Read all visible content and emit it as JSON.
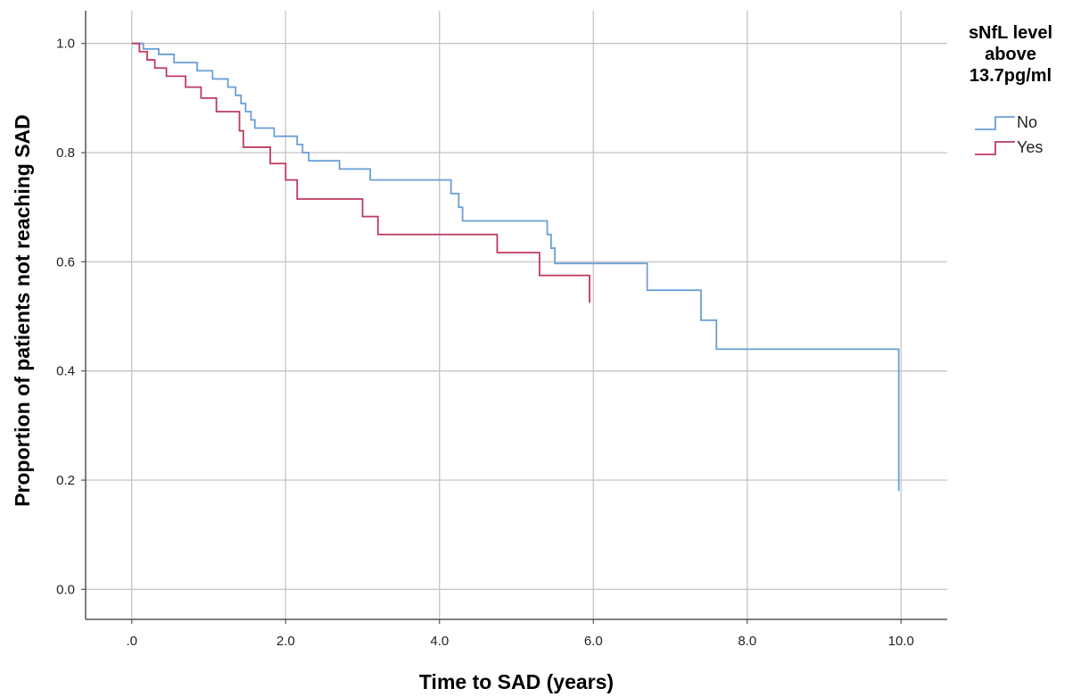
{
  "chart_data": {
    "type": "line",
    "title": "",
    "xlabel": "Time to SAD (years)",
    "ylabel": "Proportion of patients not reaching SAD",
    "xlim": [
      -0.6,
      10.6
    ],
    "ylim": [
      -0.055,
      1.06
    ],
    "x_ticks": [
      0,
      2,
      4,
      6,
      8,
      10
    ],
    "x_tick_labels": [
      ".0",
      "2.0",
      "4.0",
      "6.0",
      "8.0",
      "10.0"
    ],
    "y_ticks": [
      0,
      0.2,
      0.4,
      0.6,
      0.8,
      1.0
    ],
    "y_tick_labels": [
      "0.0",
      "0.2",
      "0.4",
      "0.6",
      "0.8",
      "1.0"
    ],
    "grid": true,
    "legend": {
      "title_lines": [
        "sNfL level",
        "above",
        "13.7pg/ml"
      ],
      "position": "right"
    },
    "series": [
      {
        "name": "No",
        "color": "#6a9fd6",
        "step": true,
        "x": [
          0,
          0.15,
          0.35,
          0.55,
          0.85,
          1.05,
          1.25,
          1.35,
          1.42,
          1.48,
          1.55,
          1.6,
          1.85,
          2.15,
          2.22,
          2.3,
          2.7,
          3.1,
          4.15,
          4.25,
          4.3,
          5.4,
          5.45,
          5.5,
          6.6,
          6.7,
          7.4,
          7.6,
          9.95,
          9.97
        ],
        "y": [
          1.0,
          0.99,
          0.98,
          0.965,
          0.95,
          0.935,
          0.92,
          0.905,
          0.89,
          0.875,
          0.86,
          0.845,
          0.83,
          0.815,
          0.8,
          0.785,
          0.77,
          0.75,
          0.725,
          0.7,
          0.675,
          0.65,
          0.625,
          0.597,
          0.597,
          0.548,
          0.493,
          0.44,
          0.44,
          0.18
        ]
      },
      {
        "name": "Yes",
        "color": "#c0395c",
        "step": true,
        "x": [
          0,
          0.1,
          0.2,
          0.3,
          0.45,
          0.7,
          0.9,
          1.1,
          1.4,
          1.45,
          1.8,
          2.0,
          2.15,
          3.0,
          3.2,
          4.75,
          5.3,
          5.95
        ],
        "y": [
          1.0,
          0.985,
          0.97,
          0.955,
          0.94,
          0.92,
          0.9,
          0.875,
          0.84,
          0.81,
          0.78,
          0.75,
          0.715,
          0.683,
          0.65,
          0.617,
          0.575,
          0.525
        ]
      }
    ]
  }
}
